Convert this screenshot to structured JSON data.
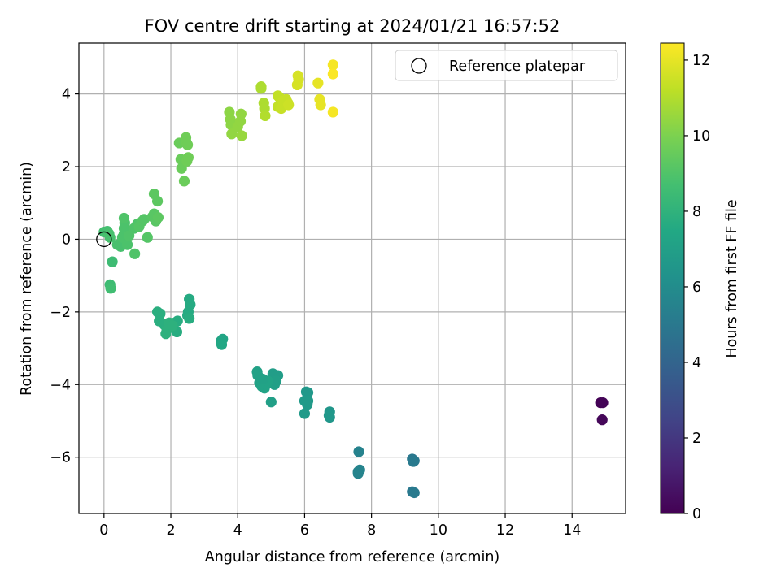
{
  "chart_data": {
    "type": "scatter",
    "title": "FOV centre drift starting at 2024/01/21 16:57:52",
    "xlabel": "Angular distance from reference (arcmin)",
    "ylabel": "Rotation from reference (arcmin)",
    "xlim": [
      -0.75,
      15.6
    ],
    "ylim": [
      -7.55,
      5.4
    ],
    "xticks": [
      0,
      2,
      4,
      6,
      8,
      10,
      12,
      14
    ],
    "yticks": [
      -6,
      -4,
      -2,
      0,
      2,
      4
    ],
    "grid": true,
    "legend": {
      "placement": "top-right",
      "entries": [
        "Reference platepar"
      ]
    },
    "reference_point": {
      "x": 0,
      "y": 0
    },
    "colorbar": {
      "label": "Hours from first FF file",
      "colormap": "viridis",
      "range": [
        0,
        12.45
      ],
      "ticks": [
        0,
        2,
        4,
        6,
        8,
        10,
        12
      ]
    },
    "series": [
      {
        "points": [
          [
            14.85,
            -4.5,
            0.05
          ],
          [
            14.92,
            -4.5,
            0.1
          ],
          [
            14.9,
            -4.97,
            0.2
          ],
          [
            9.22,
            -6.05,
            5.0
          ],
          [
            9.28,
            -6.1,
            5.0
          ],
          [
            9.25,
            -6.12,
            5.1
          ],
          [
            9.22,
            -6.95,
            5.0
          ],
          [
            9.28,
            -6.98,
            5.1
          ],
          [
            7.62,
            -5.85,
            5.5
          ],
          [
            7.6,
            -6.4,
            5.5
          ],
          [
            7.65,
            -6.35,
            5.6
          ],
          [
            7.6,
            -6.45,
            5.6
          ],
          [
            6.75,
            -4.75,
            6.5
          ],
          [
            6.75,
            -4.9,
            6.5
          ],
          [
            6.73,
            -4.85,
            6.6
          ],
          [
            6.05,
            -4.2,
            6.6
          ],
          [
            6.1,
            -4.22,
            6.6
          ],
          [
            6.0,
            -4.45,
            6.7
          ],
          [
            6.1,
            -4.45,
            6.7
          ],
          [
            6.08,
            -4.55,
            6.7
          ],
          [
            6.0,
            -4.8,
            6.7
          ],
          [
            5.05,
            -3.7,
            6.9
          ],
          [
            5.2,
            -3.75,
            6.9
          ],
          [
            5.15,
            -3.9,
            7.0
          ],
          [
            5.1,
            -4.0,
            7.0
          ],
          [
            5.0,
            -4.48,
            7.0
          ],
          [
            4.58,
            -3.65,
            7.1
          ],
          [
            4.6,
            -3.75,
            7.1
          ],
          [
            4.65,
            -3.95,
            7.1
          ],
          [
            4.72,
            -4.05,
            7.2
          ],
          [
            4.8,
            -4.1,
            7.2
          ],
          [
            4.85,
            -4.0,
            7.2
          ],
          [
            4.9,
            -3.9,
            7.2
          ],
          [
            4.75,
            -3.85,
            7.1
          ],
          [
            3.55,
            -2.75,
            7.3
          ],
          [
            3.5,
            -2.8,
            7.3
          ],
          [
            3.52,
            -2.9,
            7.4
          ],
          [
            2.55,
            -1.65,
            7.6
          ],
          [
            2.58,
            -1.8,
            7.6
          ],
          [
            2.52,
            -2.0,
            7.6
          ],
          [
            2.5,
            -2.1,
            7.6
          ],
          [
            2.55,
            -2.18,
            7.7
          ],
          [
            2.2,
            -2.25,
            7.7
          ],
          [
            2.12,
            -2.3,
            7.7
          ],
          [
            2.18,
            -2.55,
            7.7
          ],
          [
            1.6,
            -2.0,
            7.8
          ],
          [
            1.68,
            -2.05,
            7.8
          ],
          [
            1.65,
            -2.25,
            7.8
          ],
          [
            1.8,
            -2.35,
            7.8
          ],
          [
            1.95,
            -2.3,
            7.9
          ],
          [
            1.88,
            -2.5,
            7.9
          ],
          [
            1.85,
            -2.6,
            7.9
          ],
          [
            2.05,
            -2.38,
            7.9
          ],
          [
            0.25,
            -0.62,
            8.5
          ],
          [
            0.18,
            -1.25,
            8.5
          ],
          [
            0.2,
            -1.35,
            8.6
          ],
          [
            0.0,
            0.2,
            8.7
          ],
          [
            0.1,
            0.22,
            8.7
          ],
          [
            0.15,
            0.15,
            8.8
          ],
          [
            0.18,
            0.05,
            8.8
          ],
          [
            0.4,
            -0.15,
            8.8
          ],
          [
            0.5,
            -0.2,
            8.8
          ],
          [
            0.55,
            0.05,
            8.9
          ],
          [
            0.6,
            0.15,
            8.9
          ],
          [
            0.6,
            0.3,
            8.9
          ],
          [
            0.62,
            0.45,
            8.9
          ],
          [
            0.6,
            0.58,
            9.0
          ],
          [
            0.7,
            -0.15,
            8.9
          ],
          [
            0.75,
            0.1,
            9.0
          ],
          [
            0.92,
            -0.4,
            9.0
          ],
          [
            0.9,
            0.3,
            9.0
          ],
          [
            1.0,
            0.42,
            9.0
          ],
          [
            1.05,
            0.35,
            9.1
          ],
          [
            1.15,
            0.5,
            9.1
          ],
          [
            1.2,
            0.55,
            9.1
          ],
          [
            1.3,
            0.05,
            9.1
          ],
          [
            1.45,
            0.62,
            9.2
          ],
          [
            1.5,
            0.7,
            9.2
          ],
          [
            1.55,
            0.5,
            9.2
          ],
          [
            1.62,
            0.6,
            9.3
          ],
          [
            1.5,
            1.25,
            9.3
          ],
          [
            1.6,
            1.05,
            9.3
          ],
          [
            2.25,
            2.65,
            9.6
          ],
          [
            2.3,
            2.2,
            9.6
          ],
          [
            2.32,
            1.95,
            9.6
          ],
          [
            2.4,
            1.6,
            9.6
          ],
          [
            2.45,
            2.8,
            9.7
          ],
          [
            2.45,
            2.7,
            9.7
          ],
          [
            2.5,
            2.6,
            9.7
          ],
          [
            2.48,
            2.15,
            9.7
          ],
          [
            2.52,
            2.25,
            9.7
          ],
          [
            3.75,
            3.5,
            10.3
          ],
          [
            3.78,
            3.3,
            10.3
          ],
          [
            3.8,
            3.15,
            10.3
          ],
          [
            3.82,
            2.9,
            10.4
          ],
          [
            4.0,
            3.1,
            10.4
          ],
          [
            4.1,
            3.45,
            10.4
          ],
          [
            4.08,
            3.25,
            10.4
          ],
          [
            4.12,
            2.85,
            10.5
          ],
          [
            4.7,
            4.2,
            10.9
          ],
          [
            4.7,
            4.15,
            10.9
          ],
          [
            4.78,
            3.75,
            10.9
          ],
          [
            4.8,
            3.6,
            10.9
          ],
          [
            4.82,
            3.4,
            11.0
          ],
          [
            5.2,
            3.95,
            11.3
          ],
          [
            5.25,
            3.9,
            11.3
          ],
          [
            5.2,
            3.65,
            11.3
          ],
          [
            5.3,
            3.6,
            11.4
          ],
          [
            5.35,
            3.8,
            11.4
          ],
          [
            5.45,
            3.85,
            11.4
          ],
          [
            5.5,
            3.75,
            11.4
          ],
          [
            5.52,
            3.7,
            11.5
          ],
          [
            5.8,
            4.5,
            11.7
          ],
          [
            5.82,
            4.4,
            11.7
          ],
          [
            5.78,
            4.25,
            11.7
          ],
          [
            6.4,
            4.3,
            12.0
          ],
          [
            6.45,
            3.85,
            12.0
          ],
          [
            6.48,
            3.7,
            12.0
          ],
          [
            6.85,
            4.8,
            12.3
          ],
          [
            6.85,
            4.55,
            12.4
          ],
          [
            6.85,
            3.5,
            12.3
          ]
        ]
      }
    ]
  }
}
